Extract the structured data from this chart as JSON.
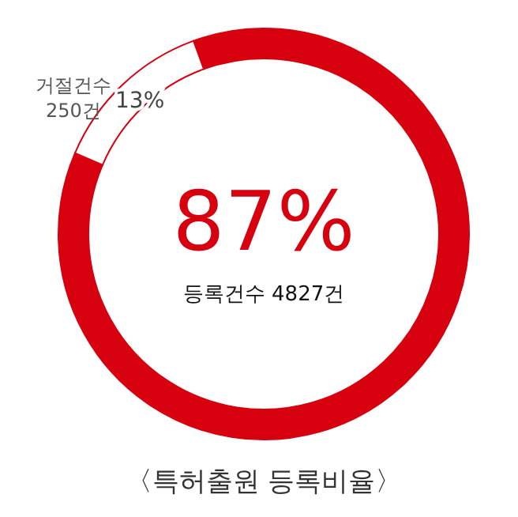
{
  "chart_data": {
    "type": "donut",
    "title": "〈특허출원 등록비율〉",
    "categories": [
      "등록건수 4827건",
      "거절건수 250건"
    ],
    "values": [
      87,
      13
    ],
    "colors": [
      "#d7000f",
      "#ffffff"
    ],
    "value_labels": [
      "87%",
      "13%"
    ]
  }
}
